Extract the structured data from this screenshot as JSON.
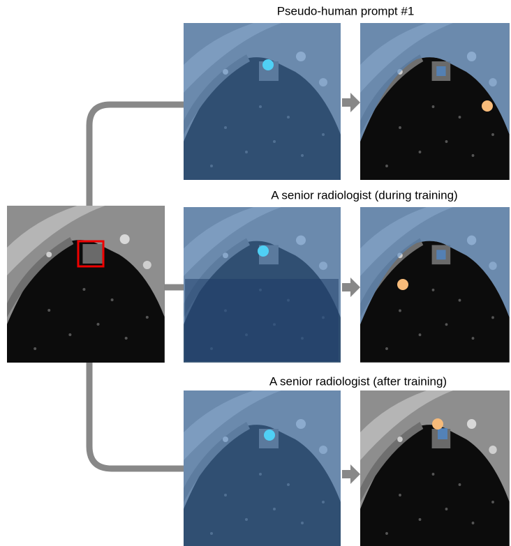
{
  "captions": [
    "Pseudo-human prompt #1",
    "A senior radiologist (during training)",
    "A senior radiologist (after training)"
  ]
}
